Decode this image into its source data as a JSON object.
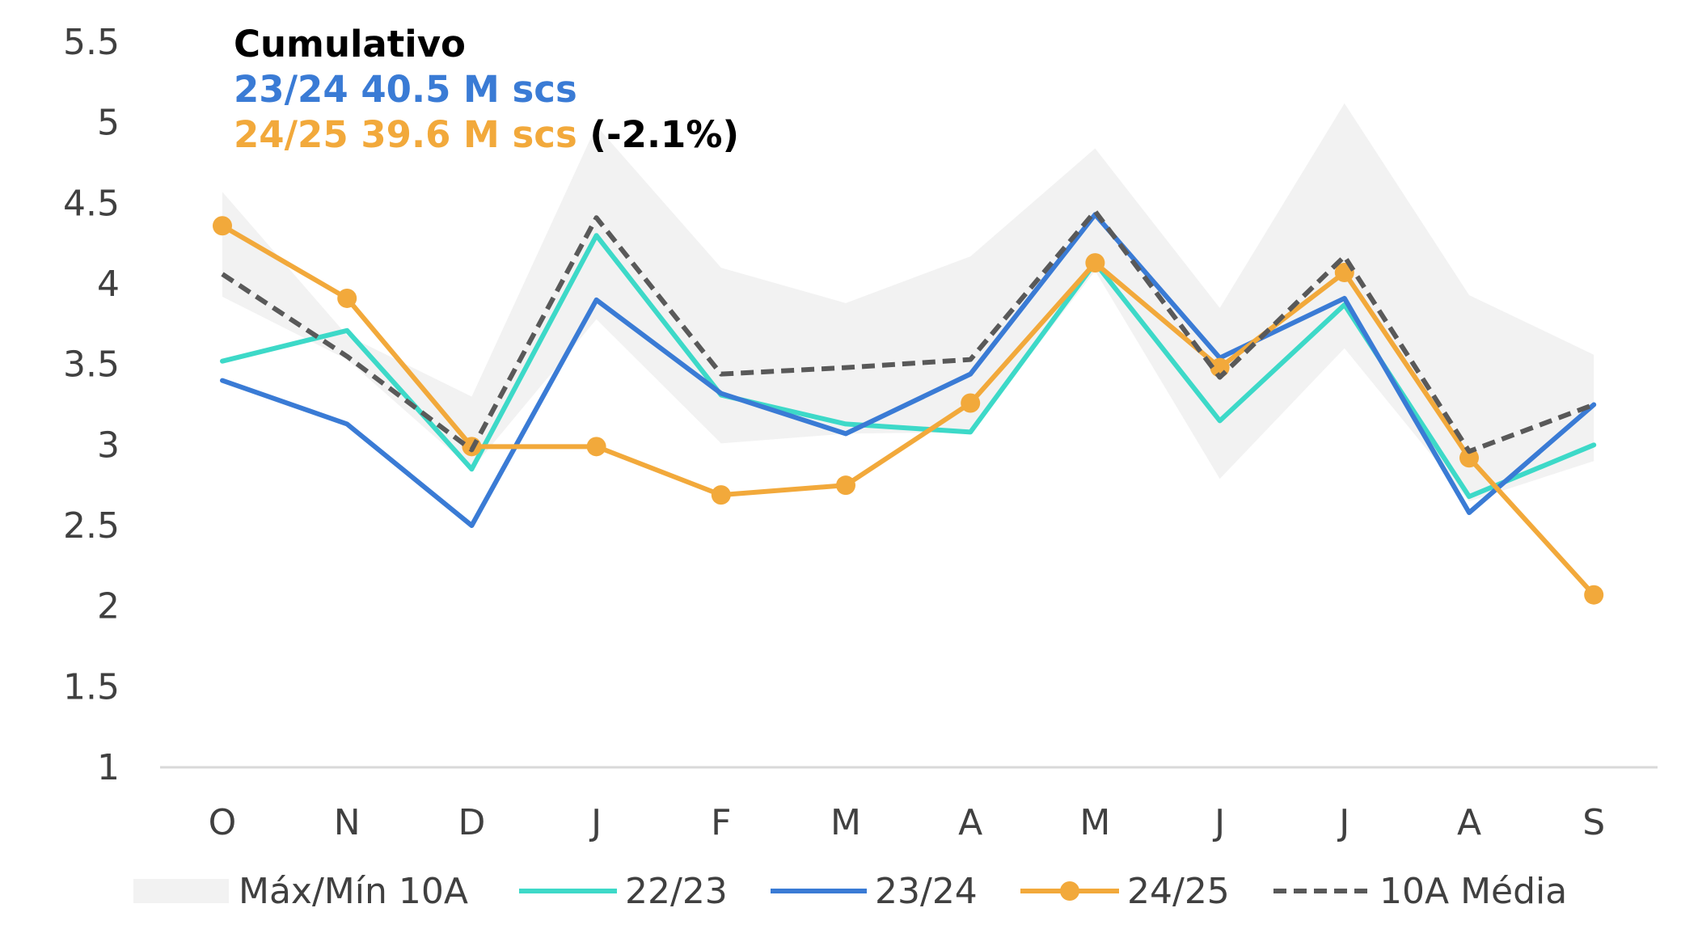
{
  "chart_data": {
    "type": "line",
    "categories": [
      "O",
      "N",
      "D",
      "J",
      "F",
      "M",
      "A",
      "M",
      "J",
      "J",
      "A",
      "S"
    ],
    "ylim": [
      1,
      5.5
    ],
    "yticks": [
      "1",
      "1.5",
      "2",
      "2.5",
      "3",
      "3.5",
      "4",
      "4.5",
      "5",
      "5.5"
    ],
    "grid": false,
    "legend_position": "bottom",
    "band": {
      "name": "Máx/Mín 10A",
      "color": "#f2f2f2",
      "max": [
        4.57,
        3.68,
        3.3,
        4.98,
        4.1,
        3.88,
        4.17,
        4.84,
        3.85,
        5.12,
        3.93,
        3.56
      ],
      "min": [
        3.92,
        3.53,
        2.85,
        3.78,
        3.01,
        3.07,
        3.08,
        4.08,
        2.79,
        3.6,
        2.65,
        2.9
      ]
    },
    "series": [
      {
        "name": "22/23",
        "color": "#3dd9c8",
        "style": "solid",
        "markers": false,
        "values": [
          3.52,
          3.71,
          2.85,
          4.3,
          3.31,
          3.13,
          3.08,
          4.13,
          3.15,
          3.87,
          2.68,
          3.0
        ]
      },
      {
        "name": "23/24",
        "color": "#3a7bd5",
        "style": "solid",
        "markers": false,
        "values": [
          3.4,
          3.13,
          2.5,
          3.9,
          3.32,
          3.07,
          3.44,
          4.43,
          3.54,
          3.91,
          2.58,
          3.25
        ]
      },
      {
        "name": "24/25",
        "color": "#f2a93b",
        "style": "solid",
        "markers": true,
        "values": [
          4.36,
          3.91,
          2.99,
          2.99,
          2.69,
          2.75,
          3.26,
          4.13,
          3.48,
          4.07,
          2.92,
          2.07
        ]
      },
      {
        "name": "10A Média",
        "color": "#595959",
        "style": "dashed",
        "markers": false,
        "values": [
          4.06,
          3.55,
          2.97,
          4.41,
          3.44,
          3.48,
          3.53,
          4.45,
          3.42,
          4.17,
          2.96,
          3.25
        ]
      }
    ],
    "annotation": {
      "title": "Cumulativo",
      "line1": "23/24 40.5 M scs",
      "line1_color": "#3a7bd5",
      "line2": "24/25 39.6 M scs",
      "line2_color": "#f2a93b",
      "line2_suffix": " (-2.1%)"
    }
  }
}
